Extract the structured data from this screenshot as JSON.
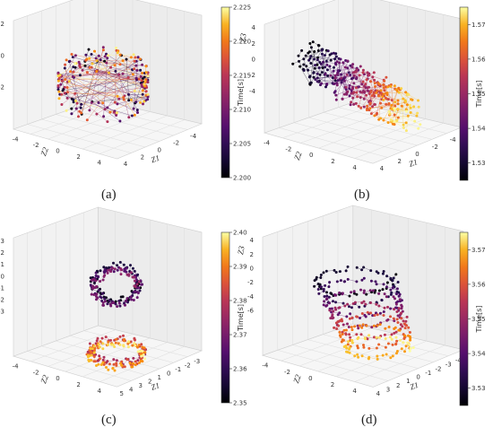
{
  "chart_data": [
    {
      "type": "scatter",
      "caption": "(a)",
      "shape": "torus",
      "axis_labels": {
        "z3": "Z3",
        "z2": "Z2",
        "z1": "Z1"
      },
      "axis_ticks": {
        "z3": [
          "2",
          "0",
          "-2"
        ],
        "z2": [
          "-4",
          "-2",
          "0",
          "2",
          "4"
        ],
        "z1": [
          "4",
          "2",
          "0",
          "-2",
          "-4"
        ]
      },
      "colorbar": {
        "label": "Time[s]",
        "min": 2.2,
        "max": 2.225,
        "ticks": [
          "2.200",
          "2.205",
          "2.210",
          "2.215",
          "2.220",
          "2.225"
        ]
      }
    },
    {
      "type": "scatter",
      "caption": "(b)",
      "shape": "cloud",
      "axis_labels": {
        "z3": "Z3",
        "z2": "Z2",
        "z1": "Z1"
      },
      "axis_ticks": {
        "z3": [
          "4",
          "2",
          "0",
          "-2",
          "-4"
        ],
        "z2": [
          "-4",
          "-2",
          "0",
          "2",
          "4"
        ],
        "z1": [
          "4",
          "2",
          "0",
          "-2",
          "-4"
        ]
      },
      "colorbar": {
        "label": "Time[s]",
        "min": 1.525,
        "max": 1.575,
        "ticks": [
          "1.53",
          "1.54",
          "1.55",
          "1.56",
          "1.57"
        ]
      }
    },
    {
      "type": "scatter",
      "caption": "(c)",
      "shape": "twin-loops",
      "axis_labels": {
        "z3": "Z3",
        "z2": "Z2",
        "z1": "Z1"
      },
      "axis_ticks": {
        "z3": [
          "3",
          "2",
          "1",
          "0",
          "-1",
          "-2",
          "-3"
        ],
        "z2": [
          "-4",
          "-2",
          "0",
          "2",
          "4"
        ],
        "z1": [
          "5",
          "4",
          "3",
          "2",
          "1",
          "0",
          "-1",
          "-2",
          "-3"
        ]
      },
      "colorbar": {
        "label": "Time[s]",
        "min": 2.35,
        "max": 2.4,
        "ticks": [
          "2.35",
          "2.36",
          "2.37",
          "2.38",
          "2.39",
          "2.40"
        ]
      }
    },
    {
      "type": "scatter",
      "caption": "(d)",
      "shape": "stacked-loops",
      "axis_labels": {
        "z3": "Z3",
        "z2": "Z2",
        "z1": "Z1"
      },
      "axis_ticks": {
        "z3": [
          "4",
          "2",
          "0",
          "-2",
          "-4",
          "-6"
        ],
        "z2": [
          "-4",
          "-2",
          "0",
          "2",
          "4"
        ],
        "z1": [
          "4",
          "3",
          "2",
          "1",
          "0",
          "-1",
          "-2",
          "-3",
          "-4"
        ]
      },
      "colorbar": {
        "label": "Time[s]",
        "min": 3.525,
        "max": 3.575,
        "ticks": [
          "3.53",
          "3.54",
          "3.55",
          "3.56",
          "3.57"
        ]
      }
    }
  ]
}
